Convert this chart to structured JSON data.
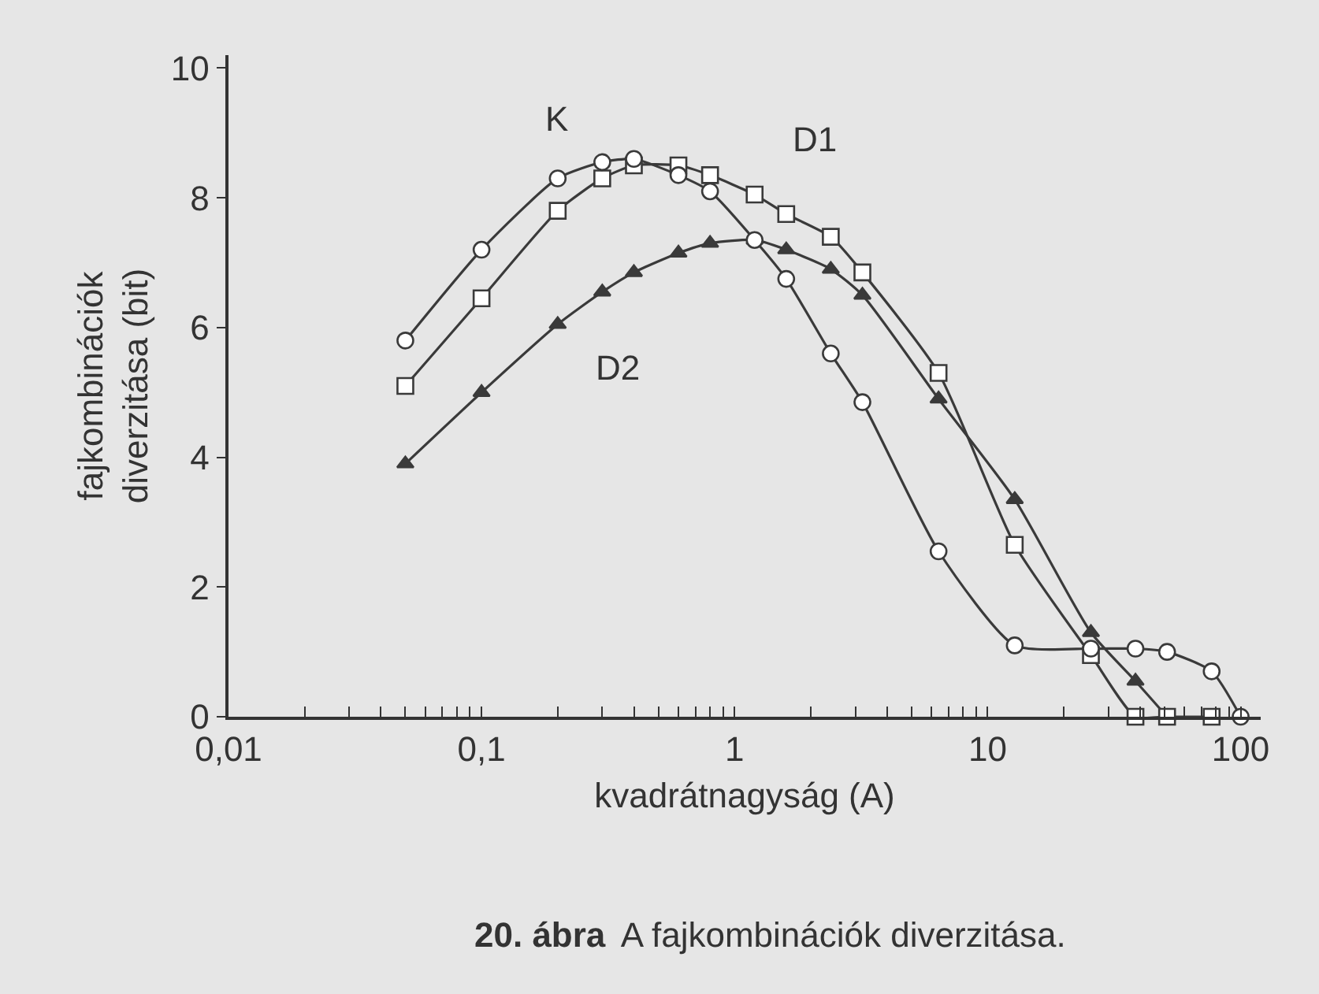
{
  "chart_data": {
    "type": "line",
    "xlabel": "kvadrátnagyság (A)",
    "ylabel": "fajkombinációk\ndiverzitása (bit)",
    "log": "x",
    "xlim": [
      0.01,
      120
    ],
    "ylim": [
      0,
      10.2
    ],
    "xticks": [
      {
        "value": 0.01,
        "label": "0,01"
      },
      {
        "value": 0.02,
        "label": null
      },
      {
        "value": 0.03,
        "label": null
      },
      {
        "value": 0.04,
        "label": null
      },
      {
        "value": 0.05,
        "label": null
      },
      {
        "value": 0.06,
        "label": null
      },
      {
        "value": 0.07,
        "label": null
      },
      {
        "value": 0.08,
        "label": null
      },
      {
        "value": 0.09,
        "label": null
      },
      {
        "value": 0.1,
        "label": "0,1"
      },
      {
        "value": 0.2,
        "label": null
      },
      {
        "value": 0.3,
        "label": null
      },
      {
        "value": 0.4,
        "label": null
      },
      {
        "value": 0.5,
        "label": null
      },
      {
        "value": 0.6,
        "label": null
      },
      {
        "value": 0.7,
        "label": null
      },
      {
        "value": 0.8,
        "label": null
      },
      {
        "value": 0.9,
        "label": null
      },
      {
        "value": 1,
        "label": "1"
      },
      {
        "value": 2,
        "label": null
      },
      {
        "value": 3,
        "label": null
      },
      {
        "value": 4,
        "label": null
      },
      {
        "value": 5,
        "label": null
      },
      {
        "value": 6,
        "label": null
      },
      {
        "value": 7,
        "label": null
      },
      {
        "value": 8,
        "label": null
      },
      {
        "value": 9,
        "label": null
      },
      {
        "value": 10,
        "label": "10"
      },
      {
        "value": 20,
        "label": null
      },
      {
        "value": 30,
        "label": null
      },
      {
        "value": 40,
        "label": null
      },
      {
        "value": 50,
        "label": null
      },
      {
        "value": 60,
        "label": null
      },
      {
        "value": 70,
        "label": null
      },
      {
        "value": 80,
        "label": null
      },
      {
        "value": 90,
        "label": null
      },
      {
        "value": 100,
        "label": "100"
      }
    ],
    "yticks": [
      0,
      2,
      4,
      6,
      8,
      10
    ],
    "grid": false,
    "legend": false,
    "line_style": "solid",
    "x": [
      0.05,
      0.1,
      0.2,
      0.3,
      0.4,
      0.6,
      0.8,
      1.2,
      1.6,
      2.4,
      3.2,
      6.4,
      12.8,
      25.6,
      38.4,
      51.2,
      76.8
    ],
    "series": [
      {
        "name": "K",
        "color": "#3a3a3a",
        "marker": "circle",
        "x": [
          0.05,
          0.1,
          0.2,
          0.3,
          0.4,
          0.6,
          0.8,
          1.2,
          1.6,
          2.4,
          3.2,
          6.4,
          12.8,
          25.6,
          38.4,
          51.2,
          76.8,
          100
        ],
        "values": [
          5.8,
          7.2,
          8.3,
          8.55,
          8.6,
          8.35,
          8.1,
          7.35,
          6.75,
          5.6,
          4.85,
          2.55,
          1.1,
          1.05,
          1.05,
          1.0,
          0.7,
          0
        ]
      },
      {
        "name": "D1",
        "color": "#3a3a3a",
        "marker": "square",
        "values": [
          5.1,
          6.45,
          7.8,
          8.3,
          8.5,
          8.5,
          8.35,
          8.05,
          7.75,
          7.4,
          6.85,
          5.3,
          2.65,
          0.95,
          0,
          0,
          0
        ]
      },
      {
        "name": "D2",
        "color": "#3a3a3a",
        "marker": "triangle",
        "x": [
          0.05,
          0.1,
          0.2,
          0.3,
          0.4,
          0.6,
          0.8,
          1.2,
          1.6,
          2.4,
          3.2,
          6.4,
          12.8,
          25.6,
          38.4,
          51.2
        ],
        "values": [
          3.9,
          5.0,
          6.05,
          6.55,
          6.85,
          7.15,
          7.3,
          7.35,
          7.2,
          6.9,
          6.5,
          4.9,
          3.35,
          1.3,
          0.55,
          0
        ]
      }
    ],
    "annotations": [
      "20. ábra",
      "A fajkombinációk diverzitása."
    ]
  }
}
